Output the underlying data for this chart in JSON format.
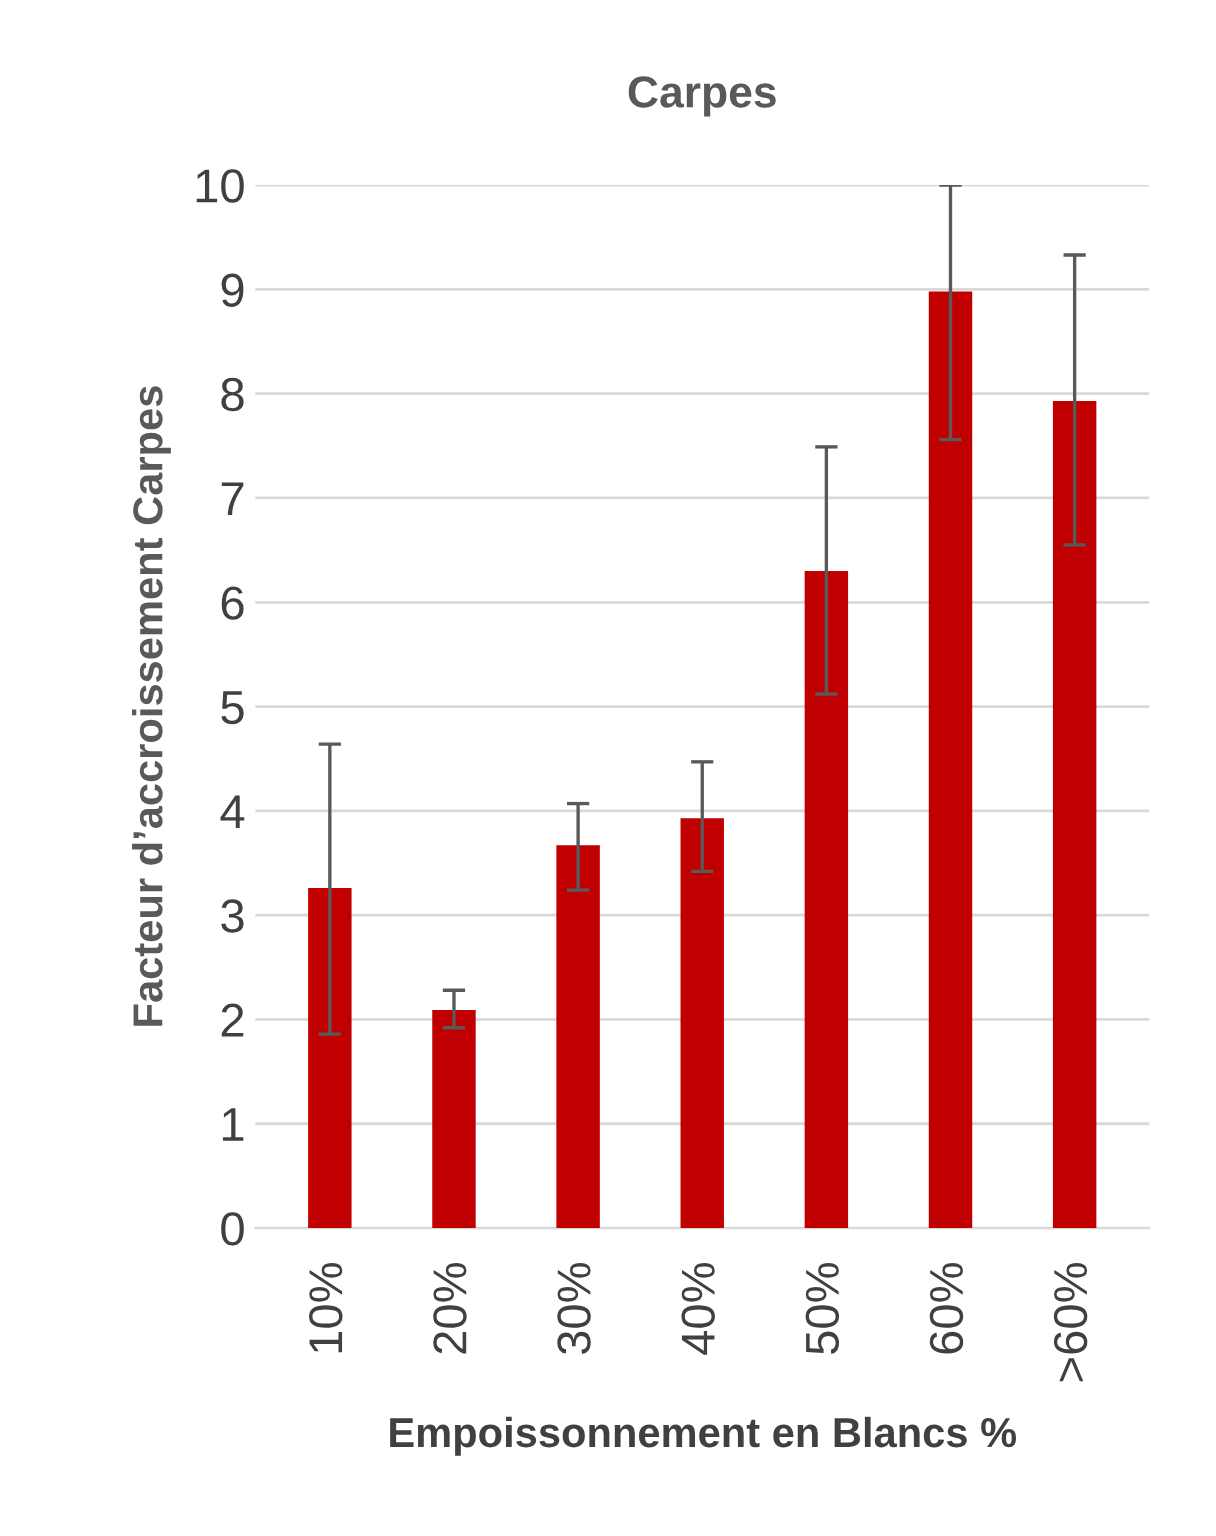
{
  "chart_data": {
    "type": "bar",
    "title": "Carpes",
    "xlabel": "Empoissonnement en Blancs %",
    "ylabel": "Facteur d’accroissement Carpes",
    "categories": [
      "10%",
      "20%",
      "30%",
      "40%",
      "50%",
      "60%",
      ">60%"
    ],
    "values": [
      3.26,
      2.09,
      3.67,
      3.93,
      6.3,
      8.98,
      7.93
    ],
    "errors": [
      [
        1.86,
        4.64
      ],
      [
        1.92,
        2.28
      ],
      [
        3.24,
        4.07
      ],
      [
        3.42,
        4.47
      ],
      [
        5.12,
        7.49
      ],
      [
        7.56,
        10.0
      ],
      [
        6.55,
        9.33
      ]
    ],
    "color": "#c00000",
    "ylim": [
      0,
      10
    ],
    "yticks": [
      0,
      1,
      2,
      3,
      4,
      5,
      6,
      7,
      8,
      9,
      10
    ],
    "grid": "y"
  }
}
